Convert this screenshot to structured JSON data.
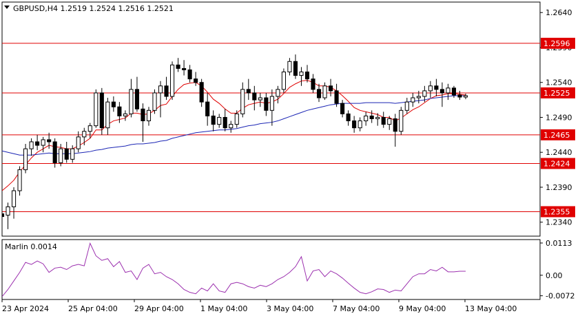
{
  "chart_data": [
    {
      "type": "candlestick",
      "title": "GBPUSD,H4",
      "ohlc_label": "1.2519 1.2524 1.2516 1.2521",
      "ylim": [
        1.232,
        1.2655
      ],
      "y_ticks": [
        "1.2640",
        "1.2590",
        "1.2540",
        "1.2490",
        "1.2440",
        "1.2390",
        "1.2340"
      ],
      "levels": [
        {
          "value": 1.2596,
          "label": "1.2596"
        },
        {
          "value": 1.2525,
          "label": "1.2525"
        },
        {
          "value": 1.2465,
          "label": "1.2465"
        },
        {
          "value": 1.2424,
          "label": "1.2424"
        },
        {
          "value": 1.2355,
          "label": "1.2355"
        }
      ],
      "x_labels": [
        "23 Apr 2024",
        "25 Apr 04:00",
        "29 Apr 04:00",
        "1 May 04:00",
        "3 May 04:00",
        "7 May 04:00",
        "9 May 04:00",
        "13 May 04:00"
      ],
      "candles": [
        [
          1.2352,
          1.2358,
          1.234,
          1.2348
        ],
        [
          1.235,
          1.2368,
          1.233,
          1.2362
        ],
        [
          1.2362,
          1.239,
          1.2345,
          1.2385
        ],
        [
          1.2385,
          1.242,
          1.2378,
          1.2415
        ],
        [
          1.2415,
          1.2452,
          1.241,
          1.2445
        ],
        [
          1.2445,
          1.246,
          1.2435,
          1.2455
        ],
        [
          1.2455,
          1.2465,
          1.2443,
          1.245
        ],
        [
          1.245,
          1.2462,
          1.244,
          1.2458
        ],
        [
          1.2458,
          1.2468,
          1.2445,
          1.2455
        ],
        [
          1.2455,
          1.246,
          1.2418,
          1.2425
        ],
        [
          1.2425,
          1.2452,
          1.242,
          1.2445
        ],
        [
          1.2445,
          1.2455,
          1.2425,
          1.243
        ],
        [
          1.243,
          1.245,
          1.2425,
          1.2445
        ],
        [
          1.2445,
          1.247,
          1.244,
          1.2462
        ],
        [
          1.2462,
          1.2475,
          1.245,
          1.247
        ],
        [
          1.247,
          1.2482,
          1.246,
          1.2478
        ],
        [
          1.2478,
          1.253,
          1.2475,
          1.2525
        ],
        [
          1.2525,
          1.2532,
          1.2465,
          1.2475
        ],
        [
          1.2475,
          1.2518,
          1.2465,
          1.2512
        ],
        [
          1.2512,
          1.252,
          1.2498,
          1.2505
        ],
        [
          1.2505,
          1.2512,
          1.2482,
          1.2492
        ],
        [
          1.2492,
          1.25,
          1.2485,
          1.2495
        ],
        [
          1.2495,
          1.2545,
          1.249,
          1.253
        ],
        [
          1.253,
          1.2548,
          1.2498,
          1.2502
        ],
        [
          1.2502,
          1.251,
          1.2455,
          1.2485
        ],
        [
          1.2485,
          1.2505,
          1.2478,
          1.25
        ],
        [
          1.25,
          1.253,
          1.2495,
          1.2525
        ],
        [
          1.2525,
          1.2542,
          1.249,
          1.2535
        ],
        [
          1.2535,
          1.2548,
          1.2515,
          1.252
        ],
        [
          1.252,
          1.257,
          1.2515,
          1.2565
        ],
        [
          1.2565,
          1.2575,
          1.2555,
          1.256
        ],
        [
          1.256,
          1.2572,
          1.255,
          1.2558
        ],
        [
          1.2558,
          1.2565,
          1.254,
          1.2545
        ],
        [
          1.2545,
          1.2555,
          1.2535,
          1.254
        ],
        [
          1.254,
          1.2545,
          1.2505,
          1.2512
        ],
        [
          1.2512,
          1.2525,
          1.2478,
          1.2492
        ],
        [
          1.2492,
          1.25,
          1.247,
          1.248
        ],
        [
          1.248,
          1.2495,
          1.2475,
          1.249
        ],
        [
          1.249,
          1.2502,
          1.247,
          1.2475
        ],
        [
          1.2475,
          1.2485,
          1.2468,
          1.248
        ],
        [
          1.248,
          1.25,
          1.2475,
          1.2495
        ],
        [
          1.2495,
          1.254,
          1.249,
          1.253
        ],
        [
          1.253,
          1.2545,
          1.2515,
          1.2525
        ],
        [
          1.2525,
          1.2535,
          1.25,
          1.2515
        ],
        [
          1.2515,
          1.2525,
          1.2505,
          1.2518
        ],
        [
          1.2518,
          1.2525,
          1.2492,
          1.25
        ],
        [
          1.25,
          1.253,
          1.2478,
          1.252
        ],
        [
          1.252,
          1.2535,
          1.251,
          1.253
        ],
        [
          1.253,
          1.256,
          1.2525,
          1.2555
        ],
        [
          1.2555,
          1.2575,
          1.255,
          1.257
        ],
        [
          1.257,
          1.258,
          1.2545,
          1.255
        ],
        [
          1.255,
          1.2562,
          1.2535,
          1.2555
        ],
        [
          1.2555,
          1.2565,
          1.254,
          1.2545
        ],
        [
          1.2545,
          1.2552,
          1.2525,
          1.253
        ],
        [
          1.253,
          1.2538,
          1.2512,
          1.2518
        ],
        [
          1.2518,
          1.254,
          1.2515,
          1.2535
        ],
        [
          1.2535,
          1.2545,
          1.252,
          1.2528
        ],
        [
          1.2528,
          1.2538,
          1.2505,
          1.251
        ],
        [
          1.251,
          1.2515,
          1.249,
          1.2495
        ],
        [
          1.2495,
          1.25,
          1.2478,
          1.2485
        ],
        [
          1.2485,
          1.2492,
          1.2468,
          1.2475
        ],
        [
          1.2475,
          1.249,
          1.247,
          1.2485
        ],
        [
          1.2485,
          1.2498,
          1.2478,
          1.2492
        ],
        [
          1.2492,
          1.25,
          1.2482,
          1.2488
        ],
        [
          1.2488,
          1.2496,
          1.2478,
          1.249
        ],
        [
          1.249,
          1.2498,
          1.2475,
          1.248
        ],
        [
          1.248,
          1.2492,
          1.2472,
          1.2488
        ],
        [
          1.2488,
          1.2495,
          1.2448,
          1.247
        ],
        [
          1.247,
          1.2505,
          1.2465,
          1.25
        ],
        [
          1.25,
          1.2518,
          1.2495,
          1.2512
        ],
        [
          1.2512,
          1.2525,
          1.2505,
          1.2518
        ],
        [
          1.2518,
          1.2528,
          1.251,
          1.252
        ],
        [
          1.252,
          1.2535,
          1.2512,
          1.2528
        ],
        [
          1.2528,
          1.2542,
          1.2518,
          1.2535
        ],
        [
          1.2535,
          1.2545,
          1.252,
          1.253
        ],
        [
          1.253,
          1.254,
          1.2505,
          1.2525
        ],
        [
          1.2525,
          1.2538,
          1.2515,
          1.2532
        ],
        [
          1.2532,
          1.2535,
          1.2518,
          1.2522
        ],
        [
          1.2522,
          1.2528,
          1.2515,
          1.2519
        ],
        [
          1.2519,
          1.2524,
          1.2516,
          1.2521
        ]
      ],
      "series": [
        {
          "color": "#e00000",
          "values": [
            1.2385,
            1.2392,
            1.24,
            1.2412,
            1.2422,
            1.2432,
            1.244,
            1.2445,
            1.245,
            1.2448,
            1.2447,
            1.2445,
            1.2445,
            1.2449,
            1.2454,
            1.246,
            1.2472,
            1.2472,
            1.248,
            1.2485,
            1.2487,
            1.2489,
            1.2496,
            1.2496,
            1.2494,
            1.2495,
            1.25,
            1.2507,
            1.2509,
            1.252,
            1.253,
            1.2537,
            1.2539,
            1.254,
            1.2535,
            1.2526,
            1.2516,
            1.251,
            1.2502,
            1.2496,
            1.2496,
            1.2503,
            1.2508,
            1.251,
            1.2512,
            1.251,
            1.2512,
            1.2516,
            1.2524,
            1.2533,
            1.2538,
            1.2542,
            1.2543,
            1.254,
            1.2535,
            1.2535,
            1.2533,
            1.2528,
            1.2521,
            1.2513,
            1.2504,
            1.25,
            1.2498,
            1.2496,
            1.2494,
            1.249,
            1.249,
            1.2485,
            1.2489,
            1.2495,
            1.2501,
            1.2505,
            1.2511,
            1.2517,
            1.2521,
            1.2522,
            1.2524,
            1.2524,
            1.2523,
            1.2522
          ]
        },
        {
          "color": "#1a24b4",
          "values": [
            1.2442,
            1.244,
            1.2438,
            1.2436,
            1.2436,
            1.2436,
            1.2437,
            1.2438,
            1.2439,
            1.2438,
            1.2438,
            1.2438,
            1.2438,
            1.2439,
            1.244,
            1.2441,
            1.2443,
            1.2444,
            1.2446,
            1.2447,
            1.2448,
            1.2449,
            1.2451,
            1.2452,
            1.2452,
            1.2453,
            1.2454,
            1.2456,
            1.2457,
            1.246,
            1.2462,
            1.2464,
            1.2466,
            1.2468,
            1.2469,
            1.247,
            1.2471,
            1.2472,
            1.2472,
            1.2473,
            1.2474,
            1.2476,
            1.2478,
            1.2479,
            1.2481,
            1.2482,
            1.2483,
            1.2485,
            1.2488,
            1.2491,
            1.2494,
            1.2497,
            1.25,
            1.2502,
            1.2504,
            1.2506,
            1.2508,
            1.2509,
            1.251,
            1.251,
            1.251,
            1.251,
            1.2511,
            1.2511,
            1.2511,
            1.2511,
            1.2511,
            1.251,
            1.2511,
            1.2512,
            1.2513,
            1.2514,
            1.2515,
            1.2517,
            1.2518,
            1.2519,
            1.252,
            1.2521,
            1.2521,
            1.2521
          ]
        }
      ]
    },
    {
      "type": "line",
      "title": "Marlin 0.0014",
      "ylim": [
        -0.0085,
        0.0125
      ],
      "y_ticks": [
        "0.0113",
        "0.00",
        "-0.0072"
      ],
      "series": [
        {
          "color": "#9b2fae",
          "values": [
            -0.0075,
            -0.005,
            -0.002,
            0.001,
            0.0045,
            0.0038,
            0.005,
            0.004,
            0.001,
            0.0025,
            0.0028,
            0.002,
            0.0033,
            0.0038,
            0.0033,
            0.0112,
            0.0068,
            0.0052,
            0.0058,
            0.003,
            0.0048,
            0.001,
            0.0015,
            -0.0015,
            0.0025,
            0.0038,
            0.0005,
            0.001,
            -0.0005,
            -0.0015,
            -0.003,
            -0.005,
            -0.006,
            -0.0065,
            -0.0045,
            -0.0055,
            -0.003,
            -0.0055,
            -0.006,
            -0.003,
            -0.0025,
            -0.003,
            -0.004,
            -0.0045,
            -0.0035,
            -0.004,
            -0.003,
            -0.0015,
            -0.0005,
            0.001,
            0.003,
            0.0065,
            -0.002,
            0.0015,
            0.002,
            -0.0005,
            0.0015,
            0.0005,
            -0.001,
            -0.0028,
            -0.0045,
            -0.006,
            -0.0065,
            -0.0058,
            -0.0048,
            -0.005,
            -0.006,
            -0.0052,
            -0.0055,
            -0.003,
            -0.0005,
            0.0005,
            0.0005,
            0.002,
            0.0015,
            0.0028,
            0.0012,
            0.0012,
            0.0014,
            0.0014
          ]
        }
      ]
    }
  ]
}
